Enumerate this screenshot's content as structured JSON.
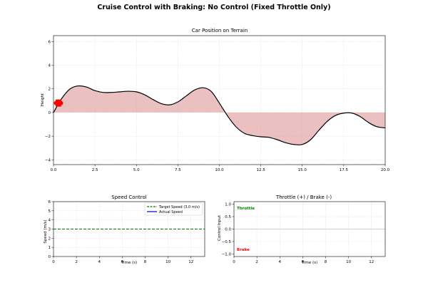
{
  "figure": {
    "suptitle": "Cruise Control with Braking: No Control (Fixed Throttle Only)"
  },
  "chart_data": [
    {
      "type": "area",
      "title": "Car Position on Terrain",
      "xlabel": "",
      "ylabel": "Height",
      "xlim": [
        0,
        20
      ],
      "ylim": [
        -4.4,
        6.5
      ],
      "xticks": [
        0.0,
        2.5,
        5.0,
        7.5,
        10.0,
        12.5,
        15.0,
        17.5,
        20.0
      ],
      "xtick_labels": [
        "0.0",
        "2.5",
        "5.0",
        "7.5",
        "10.0",
        "12.5",
        "15.0",
        "17.5",
        "20.0"
      ],
      "yticks": [
        -4,
        -2,
        0,
        2,
        4,
        6
      ],
      "ytick_labels": [
        "−4",
        "−2",
        "0",
        "2",
        "4",
        "6"
      ],
      "grid": true,
      "terrain_color": "#000000",
      "fill_color": "#d98c8c",
      "car_color": "#ff0000",
      "car_position": {
        "x": 0.3,
        "y": 0.8
      },
      "x": [
        0,
        0.5,
        1.0,
        1.5,
        2.0,
        2.5,
        3.0,
        3.5,
        4.0,
        4.5,
        5.0,
        5.5,
        6.0,
        6.5,
        7.0,
        7.5,
        8.0,
        8.5,
        9.0,
        9.5,
        10.0,
        10.5,
        11.0,
        11.5,
        12.0,
        12.5,
        13.0,
        13.5,
        14.0,
        14.5,
        15.0,
        15.5,
        16.0,
        16.5,
        17.0,
        17.5,
        18.0,
        18.5,
        19.0,
        19.5,
        20.0
      ],
      "y": [
        0.0,
        1.2,
        2.0,
        2.25,
        2.15,
        1.85,
        1.7,
        1.7,
        1.75,
        1.8,
        1.75,
        1.5,
        1.1,
        0.75,
        0.65,
        0.9,
        1.4,
        1.9,
        2.1,
        1.8,
        0.8,
        -0.3,
        -1.2,
        -1.75,
        -1.95,
        -2.05,
        -2.1,
        -2.3,
        -2.55,
        -2.7,
        -2.7,
        -2.3,
        -1.5,
        -0.75,
        -0.25,
        -0.05,
        -0.05,
        -0.35,
        -0.85,
        -1.2,
        -1.3
      ]
    },
    {
      "type": "line",
      "title": "Speed Control",
      "xlabel": "Time (s)",
      "ylabel": "Speed (m/s)",
      "xlim": [
        0,
        13.2
      ],
      "ylim": [
        0,
        6
      ],
      "xticks": [
        0,
        2,
        4,
        6,
        8,
        10,
        12
      ],
      "xtick_labels": [
        "0",
        "2",
        "4",
        "6",
        "8",
        "10",
        "12"
      ],
      "yticks": [
        0,
        1,
        2,
        3,
        4,
        5,
        6
      ],
      "ytick_labels": [
        "0",
        "1",
        "2",
        "3",
        "4",
        "5",
        "6"
      ],
      "grid": true,
      "legend_position": "top-right",
      "series": [
        {
          "name": "Target Speed (3.0 m/s)",
          "color": "#008000",
          "style": "dashed",
          "x": [
            0,
            13.2
          ],
          "y": [
            3.0,
            3.0
          ]
        },
        {
          "name": "Actual Speed",
          "color": "#0000cc",
          "style": "solid",
          "x": [],
          "y": []
        }
      ]
    },
    {
      "type": "line",
      "title": "Throttle (+) / Brake (-)",
      "xlabel": "Time (s)",
      "ylabel": "Control Input",
      "xlim": [
        0,
        13.2
      ],
      "ylim": [
        -1.1,
        1.1
      ],
      "xticks": [
        0,
        2,
        4,
        6,
        8,
        10,
        12
      ],
      "xtick_labels": [
        "0",
        "2",
        "4",
        "6",
        "8",
        "10",
        "12"
      ],
      "yticks": [
        -1.0,
        -0.5,
        0.0,
        0.5,
        1.0
      ],
      "ytick_labels": [
        "−1.0",
        "−0.5",
        "0.0",
        "0.5",
        "1.0"
      ],
      "grid": true,
      "zero_line_color": "#aaaaaa",
      "annotations": [
        {
          "text": "Throttle",
          "color": "#008000"
        },
        {
          "text": "Brake",
          "color": "#ff0000"
        }
      ]
    }
  ]
}
